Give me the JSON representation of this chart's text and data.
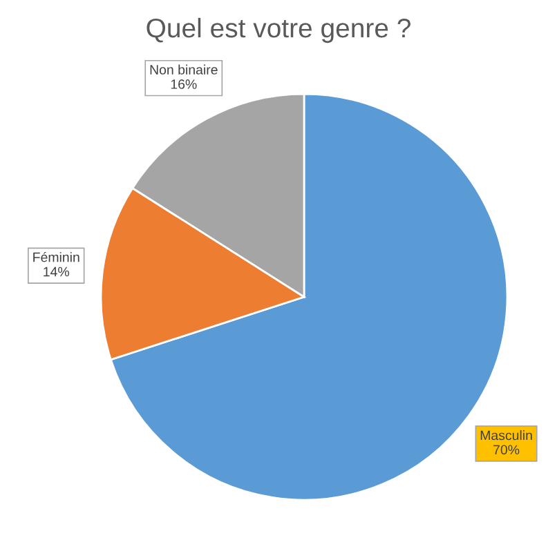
{
  "chart_data": {
    "type": "pie",
    "title": "Quel est votre genre ?",
    "categories": [
      "Masculin",
      "Féminin",
      "Non binaire"
    ],
    "values": [
      70,
      14,
      16
    ],
    "colors": [
      "#5b9bd5",
      "#ed7d31",
      "#a5a5a5"
    ],
    "value_labels": [
      "70%",
      "14%",
      "16%"
    ],
    "legend": false
  }
}
